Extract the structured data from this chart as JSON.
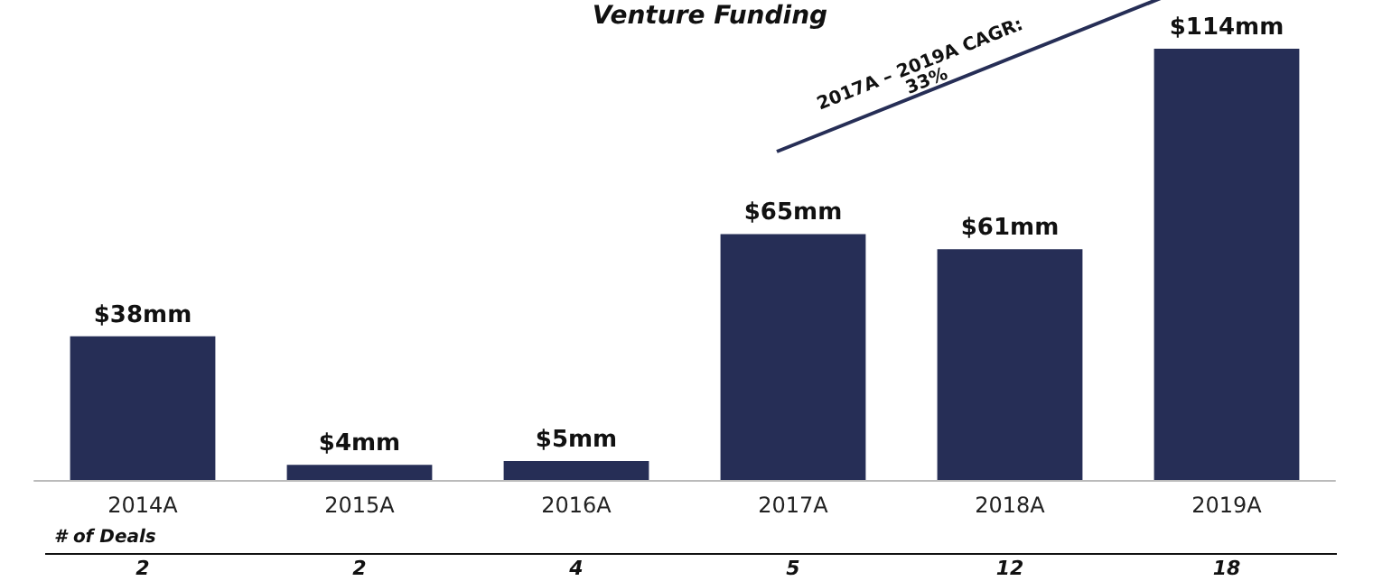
{
  "chart_data": {
    "type": "bar",
    "title": "Venture Funding",
    "categories": [
      "2014A",
      "2015A",
      "2016A",
      "2017A",
      "2018A",
      "2019A"
    ],
    "values": [
      38,
      4,
      5,
      65,
      61,
      114
    ],
    "value_labels": [
      "$38mm",
      "$4mm",
      "$5mm",
      "$65mm",
      "$61mm",
      "$114mm"
    ],
    "color": "#262e56",
    "annotations": [
      "2017A – 2019A CAGR:\n33%",
      "# of Deals",
      "2",
      "2",
      "4",
      "5",
      "12",
      "18"
    ]
  }
}
